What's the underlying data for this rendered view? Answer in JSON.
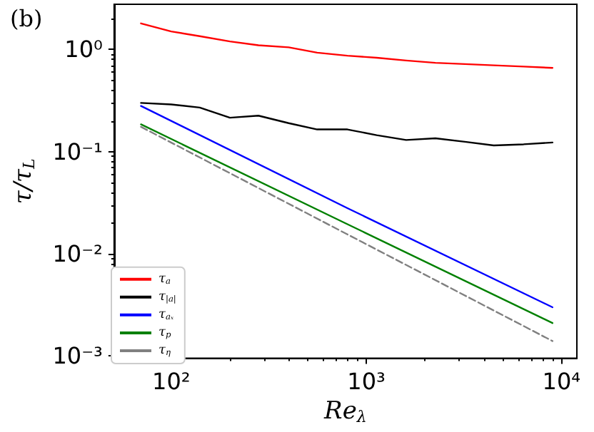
{
  "chart_data": {
    "type": "line",
    "title": "(b)",
    "xlabel": "Re$_{λ}$",
    "ylabel": "τ/τ$_{L}$",
    "log": "xy",
    "grid": false,
    "legend": "bottom left",
    "marker": "none",
    "xlim": [
      51,
      12000
    ],
    "ylim": [
      0.00095,
      2.77
    ],
    "xticks": [
      {
        "value": 100,
        "label": "10²"
      },
      {
        "value": 1000,
        "label": "10³"
      },
      {
        "value": 10000,
        "label": "10⁴"
      }
    ],
    "yticks": [
      {
        "value": 0.001,
        "label": "10⁻³"
      },
      {
        "value": 0.01,
        "label": "10⁻²"
      },
      {
        "value": 0.1,
        "label": "10⁻¹"
      },
      {
        "value": 1,
        "label": "10⁰"
      }
    ],
    "x": [
      70,
      100,
      140,
      200,
      280,
      400,
      560,
      800,
      1130,
      1600,
      2260,
      3200,
      4500,
      6400,
      9000
    ],
    "series": [
      {
        "name": "τ$_{a}$",
        "color": "#ff0000",
        "values": [
          1.8,
          1.5,
          1.35,
          1.2,
          1.1,
          1.05,
          0.93,
          0.87,
          0.83,
          0.78,
          0.74,
          0.72,
          0.7,
          0.68,
          0.66
        ]
      },
      {
        "name": "τ$_{|a|}$",
        "color": "#000000",
        "values": [
          0.3,
          0.29,
          0.27,
          0.215,
          0.225,
          0.19,
          0.165,
          0.165,
          0.145,
          0.13,
          0.135,
          0.125,
          0.115,
          0.118,
          0.123
        ]
      },
      {
        "name": "τ$_{aₓ}$",
        "color": "#0000ff",
        "x": [
          70,
          800,
          9000
        ],
        "values": [
          0.28,
          0.028,
          0.003
        ]
      },
      {
        "name": "τ$_{p}$",
        "color": "#008000",
        "x": [
          70,
          800,
          9000
        ],
        "values": [
          0.185,
          0.0195,
          0.0021
        ]
      },
      {
        "name": "τ$_{η}$",
        "color": "#808080",
        "line_style": "dashed",
        "x": [
          70,
          800,
          9000
        ],
        "values": [
          0.175,
          0.0155,
          0.0014
        ]
      }
    ]
  }
}
